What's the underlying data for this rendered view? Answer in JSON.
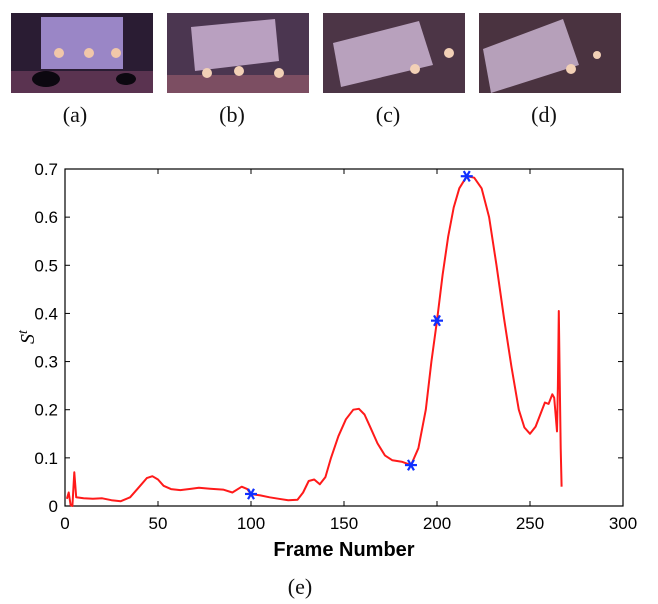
{
  "panels": [
    {
      "label": "(a)"
    },
    {
      "label": "(b)"
    },
    {
      "label": "(c)"
    },
    {
      "label": "(d)"
    }
  ],
  "caption": "(e)",
  "colors": {
    "curve": "#ff1a1a",
    "marker": "#1030ff",
    "axis": "#000000"
  },
  "chart_data": {
    "type": "line",
    "title": "",
    "xlabel": "Frame Number",
    "ylabel": "S",
    "ylabel_superscript": "t",
    "xlim": [
      0,
      300
    ],
    "ylim": [
      0,
      0.7
    ],
    "xticks": [
      0,
      50,
      100,
      150,
      200,
      250,
      300
    ],
    "yticks": [
      0,
      0.1,
      0.2,
      0.3,
      0.4,
      0.5,
      0.6,
      0.7
    ],
    "xtick_labels": [
      "0",
      "50",
      "100",
      "150",
      "200",
      "250",
      "300"
    ],
    "ytick_labels": [
      "0",
      "0.1",
      "0.2",
      "0.3",
      "0.4",
      "0.5",
      "0.6",
      "0.7"
    ],
    "grid": false,
    "series": [
      {
        "values": [
          [
            1,
            0.015
          ],
          [
            2,
            0.028
          ],
          [
            3,
            0.002
          ],
          [
            4,
            0.0
          ],
          [
            5,
            0.07
          ],
          [
            6,
            0.018
          ],
          [
            10,
            0.016
          ],
          [
            15,
            0.015
          ],
          [
            20,
            0.016
          ],
          [
            25,
            0.012
          ],
          [
            30,
            0.01
          ],
          [
            35,
            0.018
          ],
          [
            40,
            0.04
          ],
          [
            44,
            0.058
          ],
          [
            47,
            0.062
          ],
          [
            50,
            0.055
          ],
          [
            53,
            0.042
          ],
          [
            57,
            0.035
          ],
          [
            62,
            0.033
          ],
          [
            68,
            0.036
          ],
          [
            72,
            0.038
          ],
          [
            78,
            0.036
          ],
          [
            85,
            0.034
          ],
          [
            90,
            0.028
          ],
          [
            95,
            0.04
          ],
          [
            98,
            0.035
          ],
          [
            100,
            0.025
          ],
          [
            105,
            0.022
          ],
          [
            110,
            0.018
          ],
          [
            115,
            0.015
          ],
          [
            120,
            0.012
          ],
          [
            125,
            0.013
          ],
          [
            128,
            0.028
          ],
          [
            131,
            0.052
          ],
          [
            134,
            0.055
          ],
          [
            137,
            0.045
          ],
          [
            140,
            0.06
          ],
          [
            143,
            0.1
          ],
          [
            147,
            0.145
          ],
          [
            151,
            0.18
          ],
          [
            155,
            0.2
          ],
          [
            158,
            0.202
          ],
          [
            161,
            0.19
          ],
          [
            164,
            0.165
          ],
          [
            168,
            0.13
          ],
          [
            172,
            0.105
          ],
          [
            176,
            0.095
          ],
          [
            181,
            0.092
          ],
          [
            186,
            0.085
          ],
          [
            190,
            0.12
          ],
          [
            194,
            0.2
          ],
          [
            197,
            0.3
          ],
          [
            200,
            0.385
          ],
          [
            203,
            0.48
          ],
          [
            206,
            0.56
          ],
          [
            209,
            0.62
          ],
          [
            212,
            0.66
          ],
          [
            216,
            0.685
          ],
          [
            220,
            0.682
          ],
          [
            224,
            0.66
          ],
          [
            228,
            0.6
          ],
          [
            232,
            0.5
          ],
          [
            236,
            0.39
          ],
          [
            240,
            0.29
          ],
          [
            244,
            0.2
          ],
          [
            247,
            0.163
          ],
          [
            250,
            0.15
          ],
          [
            253,
            0.165
          ],
          [
            256,
            0.195
          ],
          [
            258,
            0.215
          ],
          [
            260,
            0.212
          ],
          [
            262,
            0.232
          ],
          [
            263,
            0.225
          ],
          [
            264,
            0.18
          ],
          [
            264.5,
            0.155
          ],
          [
            265,
            0.25
          ],
          [
            265.5,
            0.405
          ],
          [
            266,
            0.25
          ],
          [
            266.5,
            0.12
          ],
          [
            267,
            0.04
          ]
        ]
      }
    ],
    "markers": [
      [
        100,
        0.025
      ],
      [
        186,
        0.085
      ],
      [
        200,
        0.385
      ],
      [
        216,
        0.685
      ]
    ]
  }
}
